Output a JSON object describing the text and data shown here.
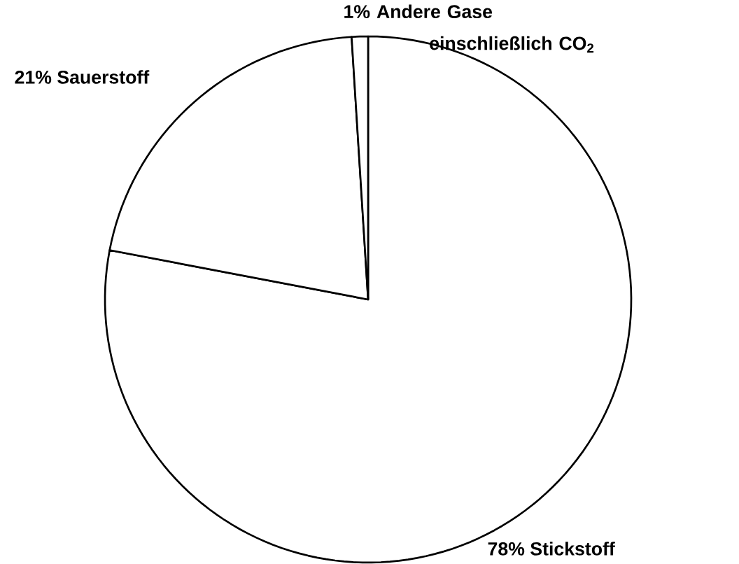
{
  "chart_data": {
    "type": "pie",
    "categories": [
      "Stickstoff",
      "Sauerstoff",
      "Andere Gase einschließlich CO$_{2}$"
    ],
    "values": [
      78,
      21,
      1
    ],
    "value_labels": [
      "78%",
      "21%",
      "1%"
    ],
    "colors": [
      "#ffffff",
      "#ffffff",
      "#ffffff"
    ]
  }
}
